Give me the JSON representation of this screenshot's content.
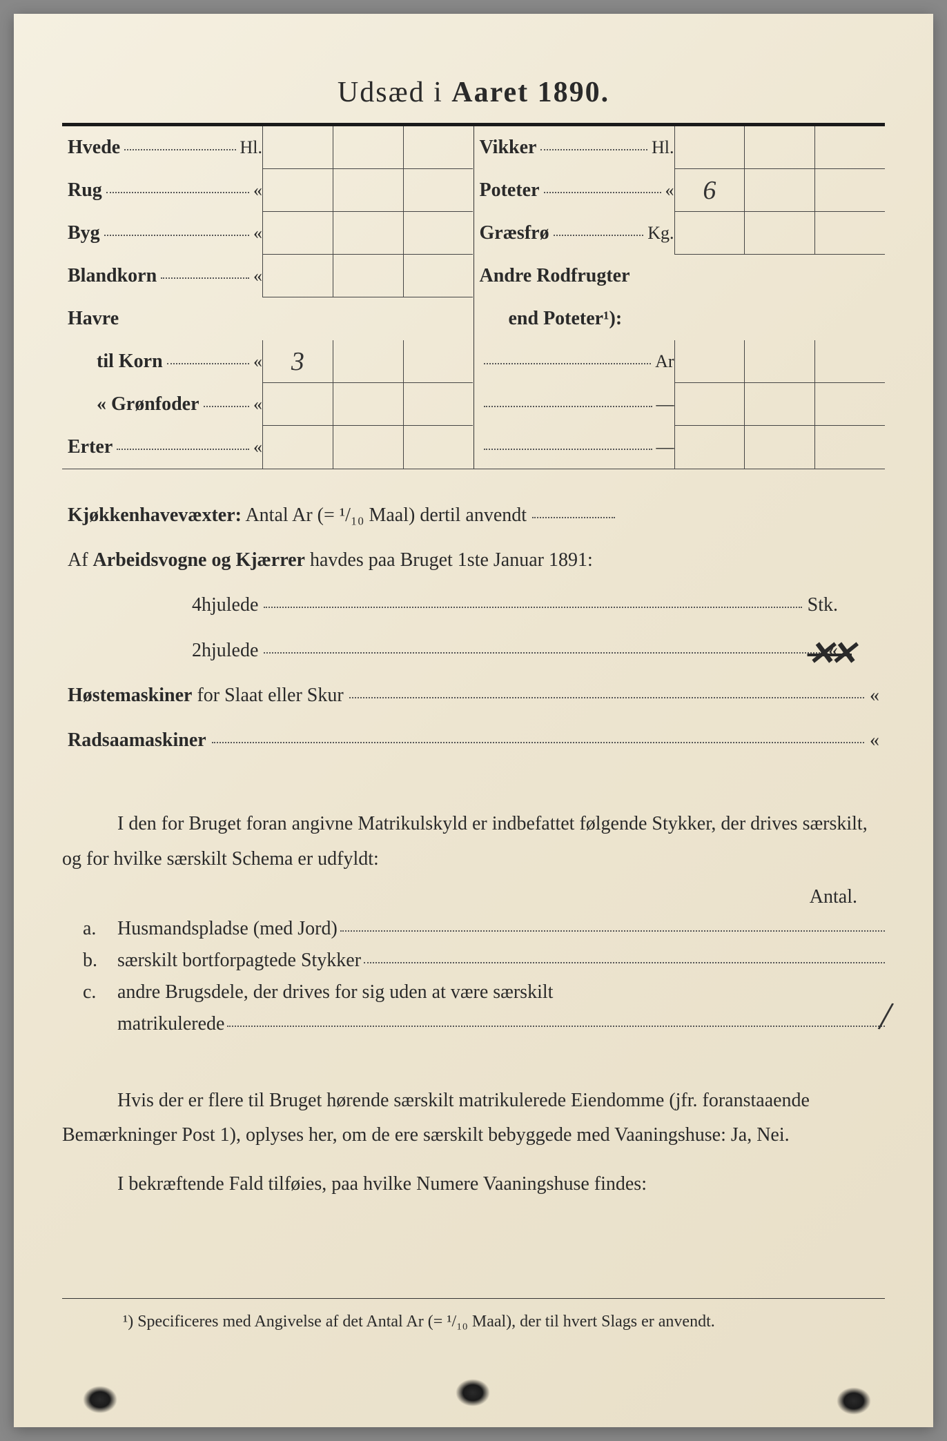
{
  "title_prefix": "Udsæd i ",
  "title_word": "Aaret",
  "title_year": "1890.",
  "table": {
    "left": [
      {
        "label": "Hvede",
        "unit": "Hl.",
        "vals": [
          "",
          "",
          ""
        ]
      },
      {
        "label": "Rug",
        "unit": "«",
        "vals": [
          "",
          "",
          ""
        ]
      },
      {
        "label": "Byg",
        "unit": "«",
        "vals": [
          "",
          "",
          ""
        ]
      },
      {
        "label": "Blandkorn",
        "unit": "«",
        "vals": [
          "",
          "",
          ""
        ]
      },
      {
        "label": "Havre",
        "unit": "",
        "vals": null
      },
      {
        "label": "til Korn",
        "unit": "«",
        "indent": true,
        "vals": [
          "3",
          "",
          ""
        ]
      },
      {
        "label": "«  Grønfoder",
        "unit": "«",
        "indent": true,
        "vals": [
          "",
          "",
          ""
        ]
      },
      {
        "label": "Erter",
        "unit": "«",
        "vals": [
          "",
          "",
          ""
        ]
      }
    ],
    "right": [
      {
        "label": "Vikker",
        "unit": "Hl.",
        "vals": [
          "",
          "",
          ""
        ]
      },
      {
        "label": "Poteter",
        "unit": "«",
        "vals": [
          "6",
          "",
          ""
        ]
      },
      {
        "label": "Græsfrø",
        "unit": "Kg.",
        "vals": [
          "",
          "",
          ""
        ]
      },
      {
        "label": "Andre Rodfrugter",
        "unit": "",
        "vals": null
      },
      {
        "label": "end Poteter¹):",
        "unit": "",
        "indent": true,
        "vals": null
      },
      {
        "label": "",
        "unit": "Ar",
        "dotsonly": true,
        "vals": [
          "",
          "",
          ""
        ]
      },
      {
        "label": "",
        "unit": "—",
        "dotsonly": true,
        "vals": [
          "",
          "",
          ""
        ]
      },
      {
        "label": "",
        "unit": "—",
        "dotsonly": true,
        "vals": [
          "",
          "",
          ""
        ]
      }
    ]
  },
  "body": {
    "kjokken_bold": "Kjøkkenhavevæxter:",
    "kjokken_rest": " Antal Ar (= ¹/₁₀ Maal) dertil anvendt",
    "arbeid_pre": "Af ",
    "arbeid_bold": "Arbeidsvogne og Kjærrer",
    "arbeid_rest": " havdes paa Bruget 1ste Januar 1891:",
    "fourwheel": "4hjulede",
    "fourwheel_unit": "Stk.",
    "twowheel": "2hjulede",
    "twowheel_unit": "«",
    "twowheel_mark": "✕✕",
    "host_bold": "Høstemaskiner",
    "host_rest": " for Slaat eller Skur",
    "host_unit": "«",
    "rad_bold": "Radsaamaskiner",
    "rad_unit": "«"
  },
  "section2": {
    "intro": "I den for Bruget foran angivne Matrikulskyld er indbefattet følgende Stykker, der drives særskilt, og for hvilke særskilt Schema er udfyldt:",
    "antal": "Antal.",
    "items": [
      {
        "letter": "a.",
        "bold": "Husmandspladse (med Jord)",
        "rest": ""
      },
      {
        "letter": "b.",
        "bold": "særskilt bortforpagtede Stykker",
        "rest": ""
      },
      {
        "letter": "c.",
        "bold": "andre Brugsdele,",
        "rest": " der drives for sig uden at være særskilt"
      }
    ],
    "c_line2": "matrikulerede"
  },
  "section3": {
    "p1_a": "Hvis der er flere til Bruget hørende særskilt matrikulerede Eiendomme (jfr. foranstaaende Bemærkninger Post 1), oplyses her, om de ere særskilt bebyggede med ",
    "p1_bold": "Vaaningshuse:",
    "p1_b": " Ja, Nei.",
    "p2_a": "I bekræftende Fald tilføies, paa ",
    "p2_bold": "hvilke Numere",
    "p2_b": " Vaaningshuse findes:"
  },
  "footnote": {
    "marker": "¹)",
    "text": " Specificeres med Angivelse af det Antal Ar (= ¹/₁₀ Maal), der til hvert Slags er anvendt."
  },
  "colors": {
    "paper_light": "#f5f0e1",
    "paper_dark": "#e8dfc8",
    "ink": "#2a2a2a",
    "rule": "#1a1a1a",
    "dots": "#555"
  }
}
